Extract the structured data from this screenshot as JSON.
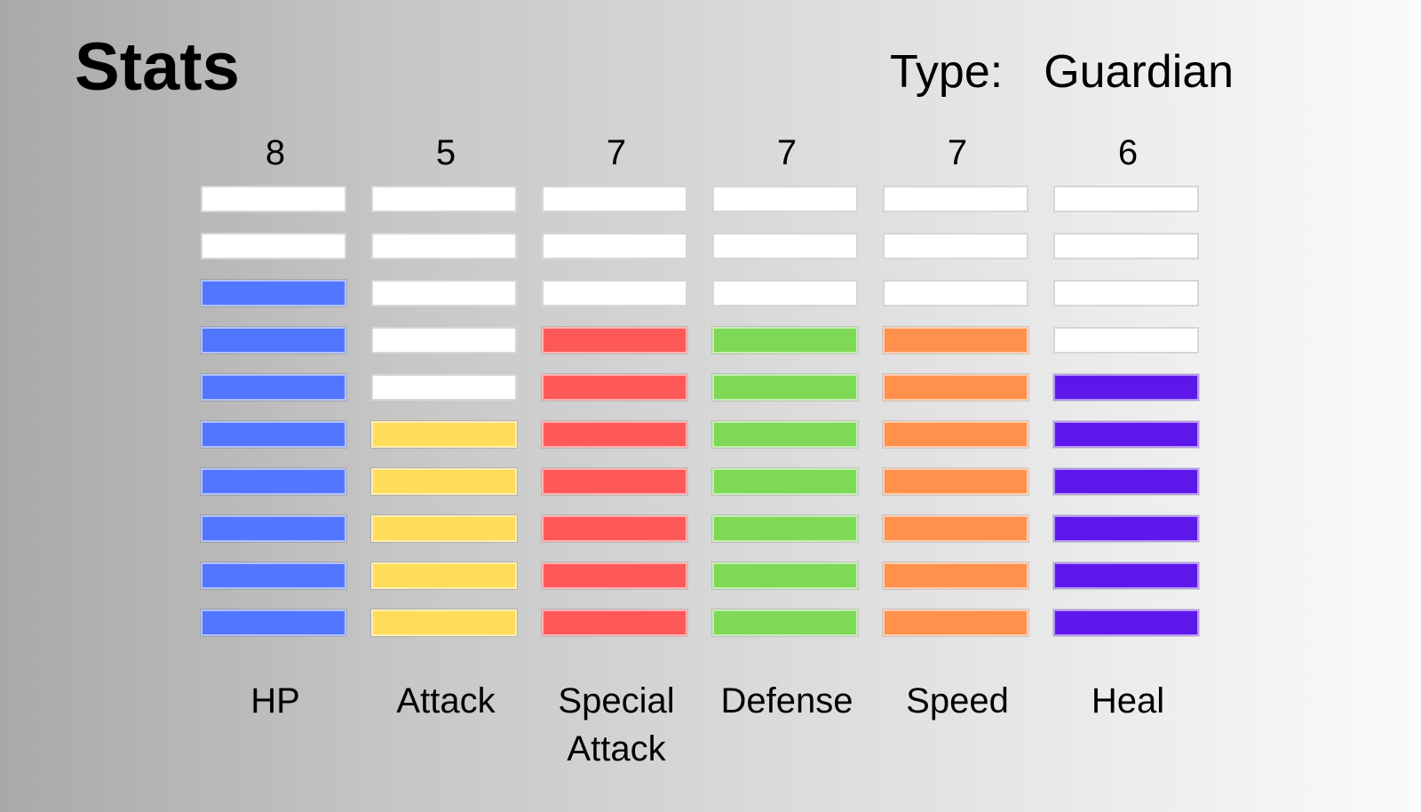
{
  "header": {
    "title": "Stats",
    "type_label": "Type:",
    "type_value": "Guardian"
  },
  "max_level": 10,
  "empty_color": "#ffffff",
  "stats": [
    {
      "key": "hp",
      "label_lines": [
        "HP"
      ],
      "value": "8",
      "level": 8,
      "color": "#5276ff"
    },
    {
      "key": "attack",
      "label_lines": [
        "Attack"
      ],
      "value": "5",
      "level": 5,
      "color": "#ffdc5a"
    },
    {
      "key": "special-attack",
      "label_lines": [
        "Special",
        "Attack"
      ],
      "value": "7",
      "level": 7,
      "color": "#ff5858"
    },
    {
      "key": "defense",
      "label_lines": [
        "Defense"
      ],
      "value": "7",
      "level": 7,
      "color": "#7ed957"
    },
    {
      "key": "speed",
      "label_lines": [
        "Speed"
      ],
      "value": "7",
      "level": 7,
      "color": "#ff914d"
    },
    {
      "key": "heal",
      "label_lines": [
        "Heal"
      ],
      "value": "6",
      "level": 6,
      "color": "#5e17eb"
    }
  ]
}
